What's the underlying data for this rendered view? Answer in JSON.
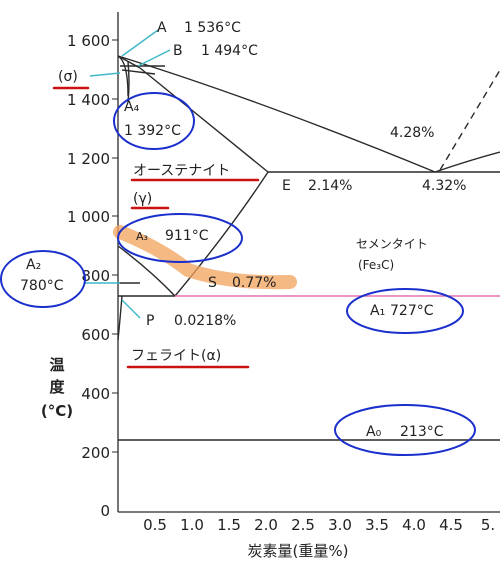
{
  "y_axis": {
    "label_chars": [
      "温",
      "度",
      "(°C)"
    ],
    "ticks": [
      "1 600",
      "1 400",
      "1 200",
      "1 000",
      "800",
      "600",
      "400",
      "200",
      "0"
    ]
  },
  "x_axis": {
    "label": "炭素量(重量%)",
    "ticks": [
      "0.5",
      "1.0",
      "1.5",
      "2.0",
      "2.5",
      "3.0",
      "3.5",
      "4.0",
      "4.5",
      "5."
    ]
  },
  "points": {
    "A": "A",
    "A_temp": "1 536°C",
    "B": "B",
    "B_temp": "1 494°C",
    "E": "E",
    "E_value": "2.14%",
    "C_value": "4.32%",
    "D_value": "4.28%",
    "S": "S",
    "S_value": "0.77%",
    "P": "P",
    "P_value": "0.0218%"
  },
  "transformations": {
    "A4_label": "A₄",
    "A4_temp": "1 392°C",
    "A3_label": "A₃",
    "A3_temp": "911°C",
    "A2_label": "A₂",
    "A2_temp": "780°C",
    "A1_label": "A₁",
    "A1_temp": "727°C",
    "A0_label": "A₀",
    "A0_temp": "213°C"
  },
  "phases": {
    "delta": "(σ)",
    "austenite": "オーステナイト",
    "gamma": "(γ)",
    "ferrite": "フェライト(α)",
    "cementite": "セメンタイト",
    "fe3c": "(Fe₃C)"
  },
  "colors": {
    "line": "#2a2a2a",
    "blue_circle": "#1a2fcc",
    "red_underline": "#cc1111",
    "orange_highlight": "#f2a15a",
    "pink_line": "#e070b0",
    "cyan_pointer": "#3fb8c8"
  }
}
